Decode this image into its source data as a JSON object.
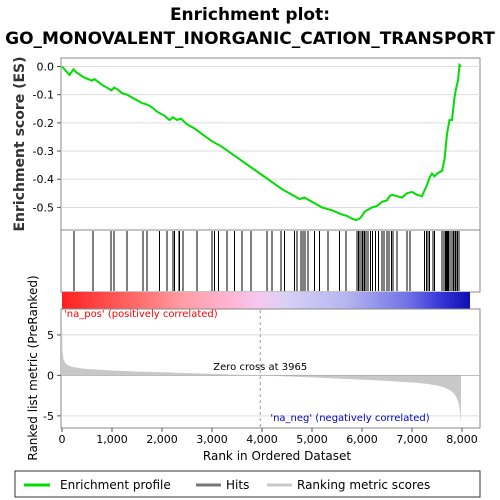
{
  "title_line1": "Enrichment plot:",
  "title_line2": "GO_MONOVALENT_INORGANIC_CATION_TRANSPORT",
  "colors": {
    "es_line": "#00dd00",
    "hits": "#000000",
    "metric_fill": "#c8c8c8",
    "pos_label": "#ff0000",
    "neg_label": "#0000cc",
    "zero_cross": "#9a9a9a"
  },
  "chart_data": [
    {
      "type": "line",
      "panel": "enrichment-score",
      "ylabel": "Enrichment score (ES)",
      "ylim": [
        -0.58,
        0.03
      ],
      "yticks": [
        0.0,
        -0.1,
        -0.2,
        -0.3,
        -0.4,
        -0.5
      ],
      "ytick_labels": [
        "0.0",
        "-0.1",
        "-0.2",
        "-0.3",
        "-0.4",
        "-0.5"
      ],
      "grid": true,
      "series": [
        {
          "name": "Enrichment profile",
          "x": [
            0,
            150,
            230,
            280,
            450,
            600,
            650,
            800,
            990,
            1040,
            1100,
            1200,
            1300,
            1400,
            1500,
            1600,
            1700,
            1800,
            1900,
            2050,
            2150,
            2220,
            2300,
            2380,
            2500,
            2650,
            2800,
            3000,
            3200,
            3400,
            3600,
            3800,
            4000,
            4200,
            4400,
            4600,
            4750,
            4850,
            5000,
            5200,
            5400,
            5600,
            5700,
            5800,
            5880,
            5950,
            6000,
            6050,
            6100,
            6200,
            6300,
            6400,
            6500,
            6550,
            6600,
            6700,
            6800,
            6900,
            7000,
            7100,
            7200,
            7300,
            7350,
            7400,
            7450,
            7500,
            7600,
            7650,
            7700,
            7750,
            7800,
            7850,
            7880,
            7920,
            7950,
            7980
          ],
          "y": [
            0.0,
            -0.03,
            -0.01,
            -0.02,
            -0.04,
            -0.05,
            -0.045,
            -0.065,
            -0.085,
            -0.075,
            -0.08,
            -0.095,
            -0.1,
            -0.11,
            -0.12,
            -0.13,
            -0.135,
            -0.145,
            -0.16,
            -0.175,
            -0.19,
            -0.18,
            -0.19,
            -0.185,
            -0.205,
            -0.22,
            -0.24,
            -0.265,
            -0.285,
            -0.31,
            -0.335,
            -0.36,
            -0.385,
            -0.41,
            -0.435,
            -0.455,
            -0.47,
            -0.465,
            -0.48,
            -0.5,
            -0.51,
            -0.525,
            -0.53,
            -0.54,
            -0.545,
            -0.54,
            -0.53,
            -0.515,
            -0.51,
            -0.5,
            -0.495,
            -0.48,
            -0.475,
            -0.46,
            -0.455,
            -0.46,
            -0.465,
            -0.45,
            -0.445,
            -0.455,
            -0.46,
            -0.42,
            -0.395,
            -0.38,
            -0.39,
            -0.38,
            -0.37,
            -0.33,
            -0.24,
            -0.19,
            -0.19,
            -0.11,
            -0.08,
            -0.05,
            0.005,
            0.0
          ]
        }
      ]
    },
    {
      "type": "scatter",
      "panel": "hits",
      "series": [
        {
          "name": "Hits",
          "x": [
            240,
            620,
            980,
            1040,
            1300,
            1620,
            1700,
            1950,
            2100,
            2220,
            2250,
            2340,
            2350,
            2420,
            2700,
            3000,
            3050,
            3130,
            3300,
            3450,
            3600,
            3780,
            4100,
            4200,
            4380,
            4450,
            4650,
            4700,
            4780,
            4820,
            4860,
            4920,
            5050,
            5150,
            5320,
            5550,
            5680,
            5900,
            5930,
            5960,
            6000,
            6020,
            6050,
            6080,
            6120,
            6170,
            6210,
            6270,
            6330,
            6400,
            6440,
            6500,
            6540,
            6590,
            6620,
            6700,
            6900,
            6960,
            7250,
            7290,
            7320,
            7350,
            7420,
            7450,
            7600,
            7640,
            7670,
            7690,
            7710,
            7730,
            7760,
            7800,
            7830,
            7860,
            7880,
            7910,
            7940
          ]
        }
      ]
    },
    {
      "type": "area",
      "panel": "ranked-list-metric",
      "xlabel": "Rank in Ordered Dataset",
      "ylabel": "Ranked list metric (PreRanked)",
      "ylim": [
        -6.5,
        8.2
      ],
      "yticks": [
        5,
        0,
        -5
      ],
      "ytick_labels": [
        "5",
        "0",
        "-5"
      ],
      "xlim": [
        0,
        8250
      ],
      "xticks": [
        0,
        1000,
        2000,
        3000,
        4000,
        5000,
        6000,
        7000,
        8000
      ],
      "xtick_labels": [
        "0",
        "1,000",
        "2,000",
        "3,000",
        "4,000",
        "5,000",
        "6,000",
        "7,000",
        "8,000"
      ],
      "series": [
        {
          "name": "Ranking metric scores",
          "x": [
            0,
            10,
            30,
            60,
            100,
            200,
            400,
            700,
            1000,
            1500,
            2000,
            2500,
            3000,
            3500,
            3965,
            4500,
            5000,
            5500,
            6000,
            6500,
            7000,
            7300,
            7500,
            7650,
            7750,
            7820,
            7870,
            7910,
            7940,
            7960,
            7980
          ],
          "y": [
            6.5,
            3.0,
            2.0,
            1.6,
            1.3,
            1.05,
            0.85,
            0.72,
            0.6,
            0.48,
            0.38,
            0.28,
            0.18,
            0.08,
            0.0,
            -0.12,
            -0.25,
            -0.38,
            -0.52,
            -0.68,
            -0.88,
            -1.05,
            -1.25,
            -1.5,
            -1.8,
            -2.1,
            -2.5,
            -3.0,
            -3.6,
            -4.4,
            -6.0
          ]
        }
      ],
      "zero_cross_label": "Zero cross at 3965",
      "zero_cross": 3965,
      "pos_label": "'na_pos' (positively correlated)",
      "neg_label": "'na_neg' (negatively correlated)"
    }
  ],
  "legend": {
    "items": [
      {
        "label": "Enrichment profile",
        "color": "#00dd00"
      },
      {
        "label": "Hits",
        "color": "#777777"
      },
      {
        "label": "Ranking metric scores",
        "color": "#c8c8c8"
      }
    ]
  }
}
